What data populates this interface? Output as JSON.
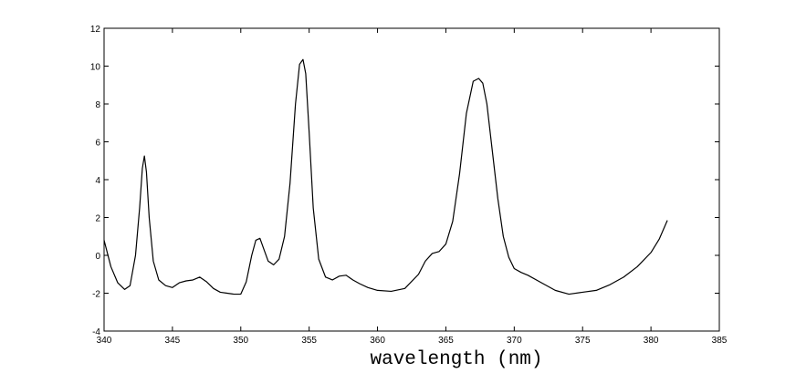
{
  "chart_data": {
    "type": "line",
    "title": "",
    "xlabel": "wavelength (nm)",
    "ylabel": "",
    "xlim": [
      340,
      385
    ],
    "ylim": [
      -4,
      12
    ],
    "xticks": [
      340,
      345,
      350,
      355,
      360,
      365,
      370,
      375,
      380,
      385
    ],
    "yticks": [
      -4,
      -2,
      0,
      2,
      4,
      6,
      8,
      10,
      12
    ],
    "grid": false,
    "box": true,
    "line_color": "#000000",
    "series": [
      {
        "x": [
          340.0,
          340.5,
          341.0,
          341.5,
          341.9,
          342.3,
          342.6,
          342.8,
          342.95,
          343.1,
          343.3,
          343.6,
          344.0,
          344.5,
          345.0,
          345.5,
          346.0,
          346.5,
          347.0,
          347.5,
          348.0,
          348.5,
          349.0,
          349.5,
          350.0,
          350.4,
          350.8,
          351.1,
          351.4,
          351.7,
          352.0,
          352.4,
          352.8,
          353.2,
          353.6,
          354.0,
          354.3,
          354.55,
          354.75,
          355.0,
          355.3,
          355.7,
          356.2,
          356.7,
          357.2,
          357.7,
          358.2,
          358.7,
          359.3,
          360.0,
          361.0,
          362.0,
          363.0,
          363.5,
          364.0,
          364.5,
          365.0,
          365.5,
          366.0,
          366.5,
          367.0,
          367.4,
          367.7,
          368.0,
          368.4,
          368.8,
          369.2,
          369.6,
          370.0,
          370.5,
          371.0,
          372.0,
          373.0,
          374.0,
          375.0,
          376.0,
          377.0,
          378.0,
          379.0,
          380.0,
          380.6,
          381.2
        ],
        "y": [
          0.8,
          -0.6,
          -1.45,
          -1.8,
          -1.6,
          0.0,
          2.5,
          4.6,
          5.25,
          4.4,
          2.0,
          -0.3,
          -1.3,
          -1.6,
          -1.7,
          -1.45,
          -1.35,
          -1.3,
          -1.15,
          -1.4,
          -1.75,
          -1.95,
          -2.0,
          -2.05,
          -2.05,
          -1.4,
          0.0,
          0.8,
          0.9,
          0.3,
          -0.3,
          -0.5,
          -0.2,
          1.0,
          3.8,
          8.0,
          10.1,
          10.35,
          9.6,
          6.5,
          2.5,
          -0.2,
          -1.15,
          -1.3,
          -1.1,
          -1.05,
          -1.3,
          -1.5,
          -1.7,
          -1.85,
          -1.9,
          -1.75,
          -1.0,
          -0.3,
          0.1,
          0.2,
          0.6,
          1.8,
          4.3,
          7.5,
          9.2,
          9.35,
          9.1,
          8.0,
          5.5,
          3.0,
          1.0,
          -0.1,
          -0.7,
          -0.9,
          -1.05,
          -1.45,
          -1.85,
          -2.05,
          -1.95,
          -1.85,
          -1.55,
          -1.15,
          -0.6,
          0.15,
          0.85,
          1.85
        ]
      }
    ]
  }
}
